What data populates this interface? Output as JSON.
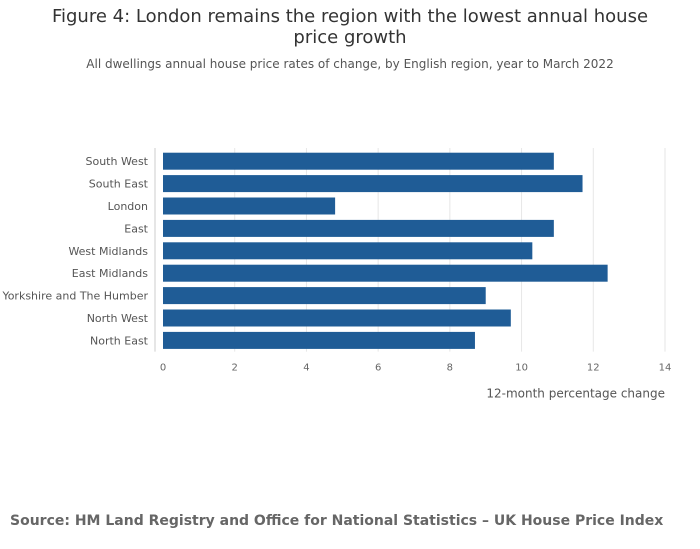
{
  "chart_data": {
    "type": "bar",
    "orientation": "horizontal",
    "title": "Figure 4: London remains the region with the lowest annual house price growth",
    "subtitle": "All dwellings annual house price rates of change, by English region, year to March 2022",
    "categories": [
      "South West",
      "South East",
      "London",
      "East",
      "West Midlands",
      "East Midlands",
      "Yorkshire and The Humber",
      "North West",
      "North East"
    ],
    "values": [
      10.9,
      11.7,
      4.8,
      10.9,
      10.3,
      12.4,
      9.0,
      9.7,
      8.7
    ],
    "xlabel": "12-month percentage change",
    "ylabel": "",
    "xlim": [
      0,
      14
    ],
    "xticks": [
      0,
      2,
      4,
      6,
      8,
      10,
      12,
      14
    ],
    "grid": true,
    "legend": "none",
    "bar_color": "#1f5c96",
    "grid_color": "#e6e6e6"
  },
  "source": "Source: HM Land Registry and Office for National Statistics – UK House Price Index"
}
